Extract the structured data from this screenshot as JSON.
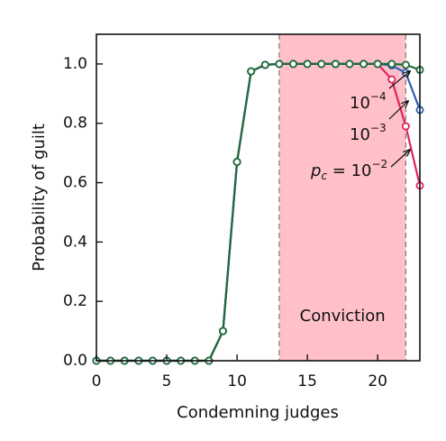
{
  "chart_data": {
    "type": "line",
    "x_label": "Condemning judges",
    "y_label": "Probability of guilt",
    "x": [
      0,
      1,
      2,
      3,
      4,
      5,
      6,
      7,
      8,
      9,
      10,
      11,
      12,
      13,
      14,
      15,
      16,
      17,
      18,
      19,
      20,
      21,
      22,
      23
    ],
    "series": [
      {
        "color": "#e0245e",
        "values": [
          0,
          0,
          0,
          0,
          0,
          0,
          0,
          0,
          0,
          0.1,
          0.67,
          0.975,
          0.997,
          1,
          1,
          1,
          1,
          1,
          1,
          1,
          1,
          0.948,
          0.79,
          0.59
        ]
      },
      {
        "color": "#2f5fb3",
        "values": [
          0,
          0,
          0,
          0,
          0,
          0,
          0,
          0,
          0,
          0.1,
          0.67,
          0.975,
          0.997,
          1,
          1,
          1,
          1,
          1,
          1,
          1,
          1,
          0.995,
          0.97,
          0.845
        ]
      },
      {
        "color": "#1e6b3a",
        "values": [
          0,
          0,
          0,
          0,
          0,
          0,
          0,
          0,
          0,
          0.1,
          0.67,
          0.975,
          0.997,
          1,
          1,
          1,
          1,
          1,
          1,
          1,
          1,
          1,
          0.997,
          0.98
        ]
      }
    ],
    "xlim": [
      0,
      23
    ],
    "ylim": [
      0,
      1.1
    ],
    "xticks": [
      0,
      5,
      10,
      15,
      20
    ],
    "yticks": [
      {
        "value": 0,
        "label": "0.0"
      },
      0.2,
      0.4,
      0.6,
      0.8,
      {
        "value": 1,
        "label": "1.0"
      }
    ],
    "shaded_region": {
      "x": [
        13,
        22
      ],
      "color": "#ffc0c8",
      "label": "Conviction"
    },
    "annotations": [
      {
        "text": "10",
        "exponent": "−4"
      },
      {
        "text": "10",
        "exponent": "−3"
      },
      {
        "prefix": "p",
        "subscript": "c",
        "text": " = 10",
        "exponent": "−2"
      }
    ]
  }
}
